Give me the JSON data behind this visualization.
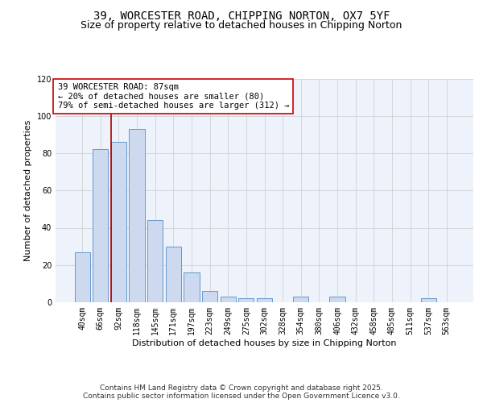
{
  "title_line1": "39, WORCESTER ROAD, CHIPPING NORTON, OX7 5YF",
  "title_line2": "Size of property relative to detached houses in Chipping Norton",
  "xlabel": "Distribution of detached houses by size in Chipping Norton",
  "ylabel": "Number of detached properties",
  "categories": [
    "40sqm",
    "66sqm",
    "92sqm",
    "118sqm",
    "145sqm",
    "171sqm",
    "197sqm",
    "223sqm",
    "249sqm",
    "275sqm",
    "302sqm",
    "328sqm",
    "354sqm",
    "380sqm",
    "406sqm",
    "432sqm",
    "458sqm",
    "485sqm",
    "511sqm",
    "537sqm",
    "563sqm"
  ],
  "values": [
    27,
    82,
    86,
    93,
    44,
    30,
    16,
    6,
    3,
    2,
    2,
    0,
    3,
    0,
    3,
    0,
    0,
    0,
    0,
    2,
    0
  ],
  "bar_color": "#ccd9ee",
  "bar_edge_color": "#6699cc",
  "bar_linewidth": 0.7,
  "vline_x": 1.6,
  "vline_color": "#aa0000",
  "vline_linewidth": 1.2,
  "annotation_text": "39 WORCESTER ROAD: 87sqm\n← 20% of detached houses are smaller (80)\n79% of semi-detached houses are larger (312) →",
  "annotation_box_color": "#ffffff",
  "annotation_box_edge": "#cc0000",
  "ylim": [
    0,
    120
  ],
  "yticks": [
    0,
    20,
    40,
    60,
    80,
    100,
    120
  ],
  "grid_color": "#cccccc",
  "background_color": "#edf2fb",
  "footer_text": "Contains HM Land Registry data © Crown copyright and database right 2025.\nContains public sector information licensed under the Open Government Licence v3.0.",
  "title_fontsize": 10,
  "subtitle_fontsize": 9,
  "axis_label_fontsize": 8,
  "tick_fontsize": 7,
  "annotation_fontsize": 7.5,
  "footer_fontsize": 6.5
}
